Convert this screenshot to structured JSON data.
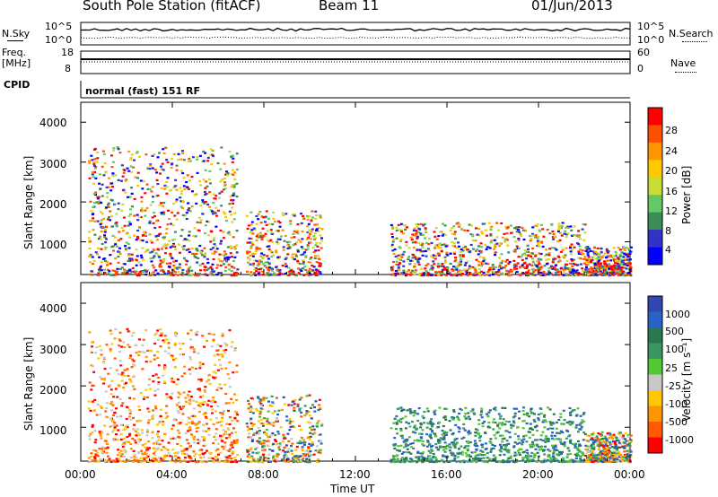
{
  "header": {
    "station": "South Pole Station (fitACF)",
    "beam": "Beam 11",
    "date": "01/Jun/2013"
  },
  "panels": {
    "nsky_label": "N.Sky",
    "nsky_ticks": [
      "10^5",
      "10^0"
    ],
    "nsearch_label": "N.Search",
    "nsearch_ticks": [
      "10^5",
      "10^0"
    ],
    "freq_label_1": "Freq.",
    "freq_label_2": "[MHz]",
    "freq_ticks": [
      "18",
      "8"
    ],
    "nave_label": "Nave",
    "nave_ticks": [
      "60",
      "0"
    ],
    "cpid_label": "CPID",
    "cpid_value": "normal (fast) 151 RF"
  },
  "axes": {
    "ylabel": "Slant Range [km]",
    "yticks": [
      "4000",
      "3000",
      "2000",
      "1000"
    ],
    "xlabel": "Time UT",
    "xticks": [
      "00:00",
      "04:00",
      "08:00",
      "12:00",
      "16:00",
      "20:00",
      "00:00"
    ]
  },
  "colorbars": {
    "power_label": "Power [dB]",
    "power_ticks": [
      "28",
      "24",
      "20",
      "16",
      "12",
      "8",
      "4"
    ],
    "power_colors": [
      "#ff0000",
      "#ff5000",
      "#ff9600",
      "#ffc800",
      "#c8dc32",
      "#64c864",
      "#3c8c5a",
      "#3232c8",
      "#0000ff"
    ],
    "velocity_label": "Velocity [m s⁻¹]",
    "velocity_ticks": [
      "1000",
      "500",
      "100",
      "25",
      "-25",
      "-100",
      "-500",
      "-1000"
    ],
    "velocity_colors": [
      "#3246b4",
      "#2864c8",
      "#287850",
      "#3c9664",
      "#50c832",
      "#c8c8c8",
      "#ffc800",
      "#ff9600",
      "#ff5a00",
      "#ff0000"
    ]
  },
  "chart_data": [
    {
      "type": "line",
      "title": "N.Sky / N.Search",
      "x_range": [
        "00:00",
        "24:00"
      ],
      "series": [
        {
          "name": "N.Sky",
          "style": "solid"
        },
        {
          "name": "N.Search",
          "style": "dotted"
        }
      ]
    },
    {
      "type": "line",
      "title": "Freq. [MHz] / Nave",
      "x_range": [
        "00:00",
        "24:00"
      ],
      "ylim_freq": [
        8,
        18
      ],
      "ylim_nave": [
        0,
        60
      ],
      "series": [
        {
          "name": "Freq.",
          "style": "solid",
          "approx_value": 12
        },
        {
          "name": "Nave",
          "style": "dotted",
          "approx_value": 30
        }
      ]
    },
    {
      "type": "heatmap",
      "title": "Power [dB]",
      "xlabel": "Time UT",
      "ylabel": "Slant Range [km]",
      "x_range_hours": [
        0,
        24
      ],
      "ylim": [
        180,
        4500
      ],
      "colorscale_range": [
        0,
        30
      ],
      "scatter_regions": [
        {
          "t0": 0.3,
          "t1": 6.8,
          "r0": 180,
          "r1": 3400,
          "level": "high"
        },
        {
          "t0": 7.2,
          "t1": 10.5,
          "r0": 180,
          "r1": 1800,
          "level": "medium"
        },
        {
          "t0": 13.5,
          "t1": 22.0,
          "r0": 180,
          "r1": 1500,
          "level": "medium"
        },
        {
          "t0": 22.0,
          "t1": 24.0,
          "r0": 180,
          "r1": 900,
          "level": "low"
        }
      ]
    },
    {
      "type": "heatmap",
      "title": "Velocity [m s-1]",
      "xlabel": "Time UT",
      "ylabel": "Slant Range [km]",
      "x_range_hours": [
        0,
        24
      ],
      "ylim": [
        180,
        4500
      ],
      "colorscale_range": [
        -1000,
        1000
      ],
      "scatter_regions": [
        {
          "t0": 0.3,
          "t1": 6.8,
          "r0": 180,
          "r1": 3400,
          "sign": "negative"
        },
        {
          "t0": 7.2,
          "t1": 10.5,
          "r0": 180,
          "r1": 1800,
          "sign": "mixed"
        },
        {
          "t0": 13.5,
          "t1": 22.0,
          "r0": 180,
          "r1": 1500,
          "sign": "mostly-positive"
        },
        {
          "t0": 22.0,
          "t1": 24.0,
          "r0": 180,
          "r1": 900,
          "sign": "mixed"
        }
      ]
    }
  ]
}
